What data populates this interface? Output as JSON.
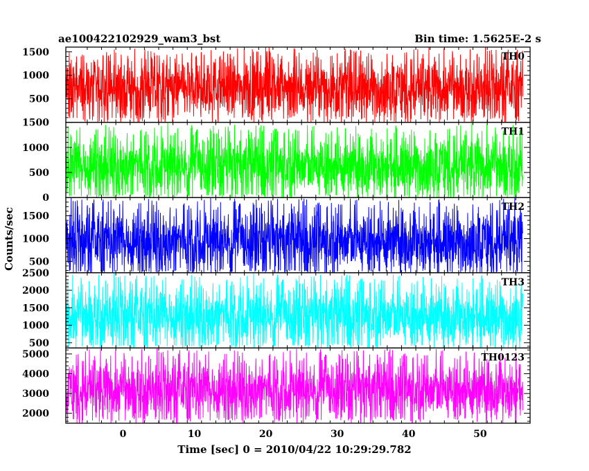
{
  "chart_data": {
    "type": "line",
    "title": "ae100422102929_wam3_bst",
    "subtitle": "Bin time: 1.5625E-2 s",
    "xlabel": "Time [sec] 0 = 2010/04/22 10:29:29.782",
    "ylabel": "Counts/sec",
    "xlim": [
      -8,
      57
    ],
    "xticks": [
      0,
      10,
      20,
      30,
      40,
      50
    ],
    "grid": false,
    "panels": [
      {
        "name": "TH0",
        "color": "#ff0000",
        "ylim": [
          0,
          1600
        ],
        "yticks": [
          500,
          1000,
          1500
        ],
        "data_range": [
          -8,
          56
        ],
        "envelope": {
          "low": 150,
          "high": 1400,
          "mean": 720,
          "max_spike": 1560
        }
      },
      {
        "name": "TH1",
        "color": "#00ff00",
        "ylim": [
          0,
          1500
        ],
        "yticks": [
          0,
          500,
          1000,
          1500
        ],
        "data_range": [
          -8,
          56
        ],
        "envelope": {
          "low": 60,
          "high": 1250,
          "mean": 640,
          "max_spike": 1450
        }
      },
      {
        "name": "TH2",
        "color": "#0000ff",
        "ylim": [
          250,
          1900
        ],
        "yticks": [
          500,
          1000,
          1500
        ],
        "data_range": [
          -8,
          56
        ],
        "envelope": {
          "low": 300,
          "high": 1650,
          "mean": 950,
          "max_spike": 1880
        }
      },
      {
        "name": "TH3",
        "color": "#00ffff",
        "ylim": [
          350,
          2500
        ],
        "yticks": [
          500,
          1000,
          1500,
          2000,
          2500
        ],
        "data_range": [
          -8,
          56
        ],
        "envelope": {
          "low": 450,
          "high": 2150,
          "mean": 1280,
          "max_spike": 2450
        }
      },
      {
        "name": "TH0123",
        "color": "#ff00ff",
        "ylim": [
          1500,
          5300
        ],
        "yticks": [
          2000,
          3000,
          4000,
          5000
        ],
        "data_range": [
          -8,
          56
        ],
        "envelope": {
          "low": 1800,
          "high": 4700,
          "mean": 3200,
          "max_spike": 5250
        }
      }
    ]
  }
}
